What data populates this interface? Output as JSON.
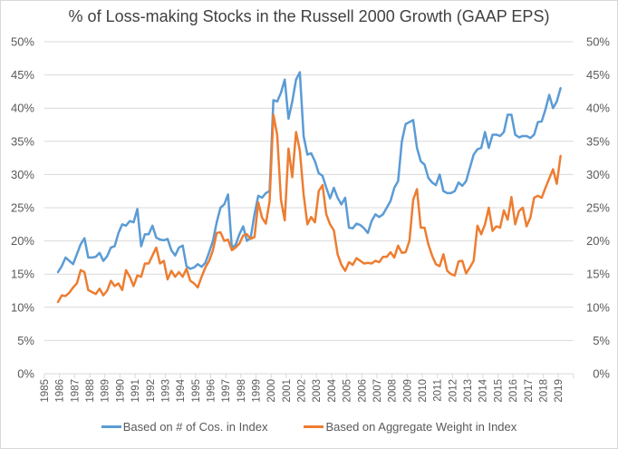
{
  "chart_data": {
    "type": "line",
    "title": "% of Loss-making Stocks in the Russell 2000 Growth  (GAAP EPS)",
    "xlabel": "",
    "ylabel": "",
    "frequency": "quarterly",
    "start": "1986 Q1",
    "end": "2019 Q2",
    "x_tick_labels": [
      "1985",
      "1986",
      "1987",
      "1988",
      "1989",
      "1990",
      "1991",
      "1992",
      "1993",
      "1994",
      "1995",
      "1996",
      "1997",
      "1998",
      "1999",
      "2000",
      "2001",
      "2002",
      "2003",
      "2004",
      "2005",
      "2006",
      "2007",
      "2008",
      "2009",
      "2010",
      "2011",
      "2012",
      "2013",
      "2014",
      "2015",
      "2016",
      "2017",
      "2018",
      "2019"
    ],
    "x_range": [
      1985,
      2020
    ],
    "y_tick_labels": [
      "0%",
      "5%",
      "10%",
      "15%",
      "20%",
      "25%",
      "30%",
      "35%",
      "40%",
      "45%",
      "50%"
    ],
    "ylim": [
      0,
      50
    ],
    "secondary_y_tick_labels": [
      "0%",
      "5%",
      "10%",
      "15%",
      "20%",
      "25%",
      "30%",
      "35%",
      "40%",
      "45%",
      "50%"
    ],
    "grid": true,
    "legend_position": "bottom",
    "series": [
      {
        "name": "Based on # of Cos. in Index",
        "color": "#5b9bd5",
        "values": [
          15.3,
          16.2,
          17.5,
          17.0,
          16.5,
          18.0,
          19.5,
          20.4,
          17.5,
          17.5,
          17.6,
          18.2,
          17.0,
          17.7,
          19.0,
          19.2,
          21.2,
          22.5,
          22.3,
          23.0,
          22.8,
          24.8,
          19.2,
          21.0,
          21.0,
          22.3,
          20.5,
          20.2,
          20.1,
          20.3,
          18.6,
          17.8,
          19.0,
          19.3,
          16.2,
          15.8,
          16.0,
          16.5,
          16.1,
          16.7,
          18.3,
          20.0,
          22.8,
          25.0,
          25.5,
          27.0,
          19.0,
          19.4,
          21.0,
          22.2,
          20.0,
          20.5,
          24.0,
          26.8,
          26.5,
          27.2,
          27.5,
          41.2,
          41.0,
          42.3,
          44.3,
          38.4,
          41.0,
          44.3,
          45.4,
          35.8,
          33.0,
          33.2,
          32.0,
          30.2,
          29.8,
          28.0,
          26.4,
          28.0,
          26.5,
          25.5,
          26.5,
          22.0,
          21.9,
          22.6,
          22.4,
          21.9,
          21.2,
          23.0,
          24.0,
          23.6,
          24.0,
          25.0,
          26.0,
          28.0,
          29.0,
          35.0,
          37.6,
          37.9,
          38.2,
          34.0,
          32.0,
          31.5,
          29.5,
          28.8,
          28.4,
          30.0,
          27.5,
          27.2,
          27.2,
          27.5,
          28.8,
          28.3,
          29.0,
          31.0,
          33.0,
          33.8,
          34.0,
          36.4,
          34.0,
          36.0,
          36.0,
          35.8,
          36.4,
          39.0,
          39.0,
          36.0,
          35.6,
          35.8,
          35.8,
          35.5,
          36.0,
          37.9,
          38.0,
          39.8,
          42.0,
          40.0,
          41.0,
          43.0
        ]
      },
      {
        "name": "Based on Aggregate Weight in Index",
        "color": "#ed7d31",
        "values": [
          10.8,
          11.8,
          11.7,
          12.2,
          13.0,
          13.6,
          15.6,
          15.3,
          12.6,
          12.3,
          12.0,
          12.8,
          11.8,
          12.5,
          14.0,
          13.2,
          13.6,
          12.6,
          15.6,
          14.6,
          13.2,
          14.8,
          14.6,
          16.6,
          16.6,
          17.8,
          19.0,
          16.6,
          17.0,
          14.2,
          15.5,
          14.6,
          15.3,
          14.6,
          15.8,
          14.0,
          13.6,
          13.0,
          14.6,
          16.0,
          17.0,
          18.6,
          21.2,
          21.3,
          20.0,
          20.2,
          18.6,
          19.0,
          19.6,
          20.8,
          21.0,
          20.3,
          20.6,
          25.8,
          23.5,
          22.6,
          26.0,
          39.0,
          36.0,
          26.2,
          23.1,
          33.9,
          29.6,
          36.4,
          33.6,
          27.0,
          22.5,
          23.6,
          22.8,
          27.5,
          28.4,
          24.0,
          22.5,
          21.6,
          18.0,
          16.4,
          15.5,
          16.8,
          16.4,
          17.4,
          17.0,
          16.6,
          16.7,
          16.6,
          17.0,
          16.8,
          17.6,
          17.6,
          18.3,
          17.5,
          19.3,
          18.2,
          18.3,
          20.0,
          26.2,
          27.8,
          22.0,
          22.0,
          19.5,
          17.8,
          16.5,
          16.2,
          18.0,
          15.5,
          15.0,
          14.8,
          16.9,
          17.0,
          15.1,
          16.0,
          17.0,
          22.3,
          21.0,
          22.5,
          25.0,
          21.5,
          22.2,
          22.0,
          24.6,
          23.2,
          26.6,
          22.5,
          24.5,
          25.0,
          22.2,
          23.5,
          26.5,
          26.8,
          26.5,
          28.0,
          29.4,
          30.8,
          28.6,
          32.8
        ]
      }
    ]
  }
}
